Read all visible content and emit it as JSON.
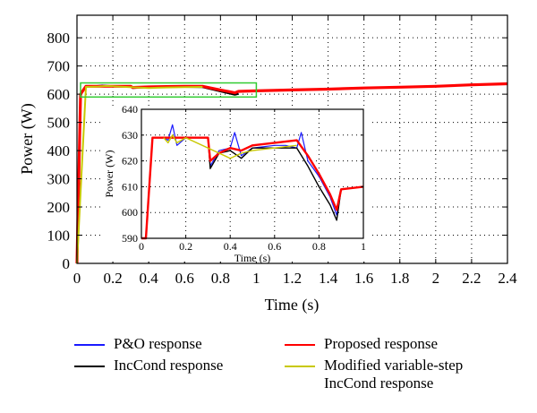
{
  "chart_data": [
    {
      "type": "line",
      "title": "",
      "xlabel": "Time (s)",
      "ylabel": "Power (W)",
      "xlim": [
        0,
        2.4
      ],
      "ylim": [
        0,
        880
      ],
      "xticks": [
        "0",
        "0.2",
        "0.4",
        "0.6",
        "0.8",
        "1",
        "1.2",
        "1.4",
        "1.6",
        "1.8",
        "2",
        "2.2",
        "2.4"
      ],
      "yticks": [
        "0",
        "100",
        "200",
        "300",
        "400",
        "500",
        "600",
        "700",
        "800"
      ],
      "grid": true,
      "legend_position": "below",
      "series": [
        {
          "name": "P&O response",
          "color": "#1a1aff",
          "x": [
            0,
            0.02,
            0.05,
            0.1,
            0.14,
            0.2,
            0.3,
            0.31,
            0.4,
            0.5,
            0.6,
            0.7,
            0.8,
            0.88,
            0.9
          ],
          "y": [
            0,
            600,
            628,
            628,
            631,
            628,
            628,
            623,
            626,
            627,
            627,
            626,
            612,
            600,
            602
          ]
        },
        {
          "name": "IncCond response",
          "color": "#000000",
          "x": [
            0,
            0.02,
            0.05,
            0.1,
            0.14,
            0.2,
            0.3,
            0.31,
            0.4,
            0.5,
            0.6,
            0.7,
            0.8,
            0.88,
            0.9
          ],
          "y": [
            0,
            598,
            628,
            628,
            630,
            628,
            628,
            622,
            625,
            626,
            626,
            625,
            610,
            598,
            601
          ]
        },
        {
          "name": "Proposed response",
          "color": "#ff0000",
          "x": [
            0,
            0.02,
            0.05,
            0.3,
            0.31,
            0.4,
            0.5,
            0.6,
            0.7,
            0.8,
            0.88,
            0.9,
            1.0,
            1.2,
            1.4,
            1.6,
            1.8,
            2.0,
            2.2,
            2.4
          ],
          "y": [
            0,
            600,
            628,
            628,
            624,
            626,
            627,
            628,
            628,
            615,
            605,
            610,
            612,
            615,
            618,
            622,
            625,
            628,
            633,
            637
          ]
        },
        {
          "name": "Modified variable-step IncCond response",
          "color": "#c8c800",
          "x": [
            0,
            0.05,
            0.12,
            0.16,
            0.2,
            0.4,
            0.45,
            0.5,
            0.6,
            0.7
          ],
          "y": [
            0,
            626,
            627,
            629,
            628,
            622,
            623,
            624,
            625,
            626
          ]
        }
      ]
    },
    {
      "type": "line",
      "title": "",
      "xlabel": "Time (s)",
      "ylabel": "Power (W)",
      "xlim": [
        0,
        1
      ],
      "ylim": [
        590,
        640
      ],
      "xticks": [
        "0",
        "0.2",
        "0.4",
        "0.6",
        "0.8",
        "1"
      ],
      "yticks": [
        "590",
        "600",
        "610",
        "620",
        "630",
        "640"
      ],
      "grid": true,
      "series": [
        {
          "name": "P&O response",
          "color": "#1a1aff",
          "x": [
            0,
            0.02,
            0.05,
            0.1,
            0.12,
            0.14,
            0.16,
            0.2,
            0.3,
            0.31,
            0.35,
            0.4,
            0.42,
            0.45,
            0.5,
            0.6,
            0.65,
            0.7,
            0.72,
            0.75,
            0.8,
            0.85,
            0.88,
            0.9,
            1.0
          ],
          "y": [
            590,
            590,
            629,
            629,
            628,
            634,
            626,
            629,
            629,
            618,
            624,
            625,
            631,
            622,
            625,
            626,
            626,
            625,
            631,
            620,
            614,
            606,
            599,
            609,
            610
          ]
        },
        {
          "name": "IncCond response",
          "color": "#000000",
          "x": [
            0,
            0.02,
            0.05,
            0.1,
            0.2,
            0.3,
            0.31,
            0.35,
            0.4,
            0.45,
            0.5,
            0.6,
            0.7,
            0.75,
            0.8,
            0.85,
            0.88,
            0.9,
            1.0
          ],
          "y": [
            590,
            590,
            629,
            629,
            629,
            629,
            617,
            623,
            624,
            621,
            625,
            625,
            625,
            618,
            610,
            603,
            597,
            609,
            610
          ]
        },
        {
          "name": "Proposed response",
          "color": "#ff0000",
          "x": [
            0,
            0.02,
            0.05,
            0.1,
            0.2,
            0.3,
            0.31,
            0.35,
            0.4,
            0.45,
            0.5,
            0.6,
            0.7,
            0.75,
            0.8,
            0.85,
            0.88,
            0.9,
            1.0
          ],
          "y": [
            590,
            590,
            629,
            629,
            629,
            629,
            620,
            623,
            625,
            624,
            626,
            627,
            628,
            622,
            615,
            607,
            601,
            609,
            610
          ]
        },
        {
          "name": "Modified variable-step IncCond response",
          "color": "#c8c800",
          "x": [
            0.1,
            0.12,
            0.14,
            0.16,
            0.2,
            0.4,
            0.45,
            0.5,
            0.6,
            0.7
          ],
          "y": [
            629,
            627,
            630,
            627,
            629,
            621,
            623,
            624,
            625,
            626
          ]
        }
      ]
    }
  ],
  "legend": [
    {
      "label": "P&O response",
      "color": "#1a1aff"
    },
    {
      "label": "Proposed response",
      "color": "#ff0000"
    },
    {
      "label": "IncCond response",
      "color": "#000000"
    },
    {
      "label": "Modified variable-step",
      "label2": "IncCond response",
      "color": "#c8c800"
    }
  ],
  "zoom_box_color": "#33cc33"
}
